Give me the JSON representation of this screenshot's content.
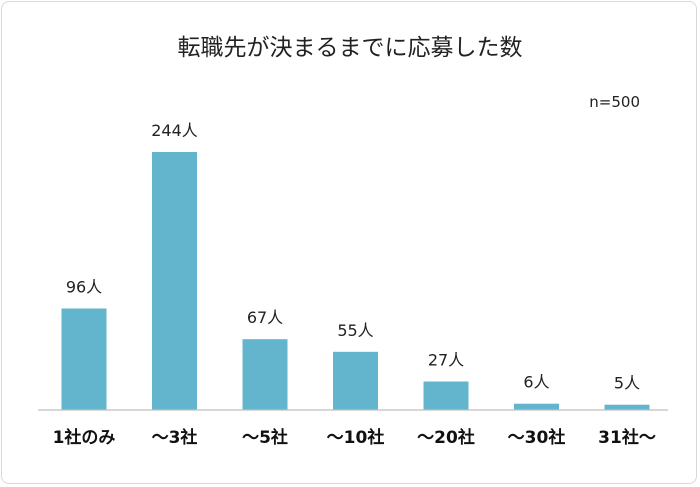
{
  "chart_data": {
    "type": "bar",
    "title": "転職先が決まるまでに応募した数",
    "note": "n=500",
    "categories": [
      "1社のみ",
      "～3社",
      "～5社",
      "～10社",
      "～20社",
      "～30社",
      "31社～"
    ],
    "values": [
      96,
      244,
      67,
      55,
      27,
      6,
      5
    ],
    "value_labels": [
      "96人",
      "244人",
      "67人",
      "55人",
      "27人",
      "6人",
      "5人"
    ],
    "xlabel": "",
    "ylabel": "",
    "ylim": [
      0,
      244
    ],
    "grid": false,
    "legend": "none",
    "bar_color": "#62b5cc",
    "axis_color": "#bfbfbf"
  }
}
